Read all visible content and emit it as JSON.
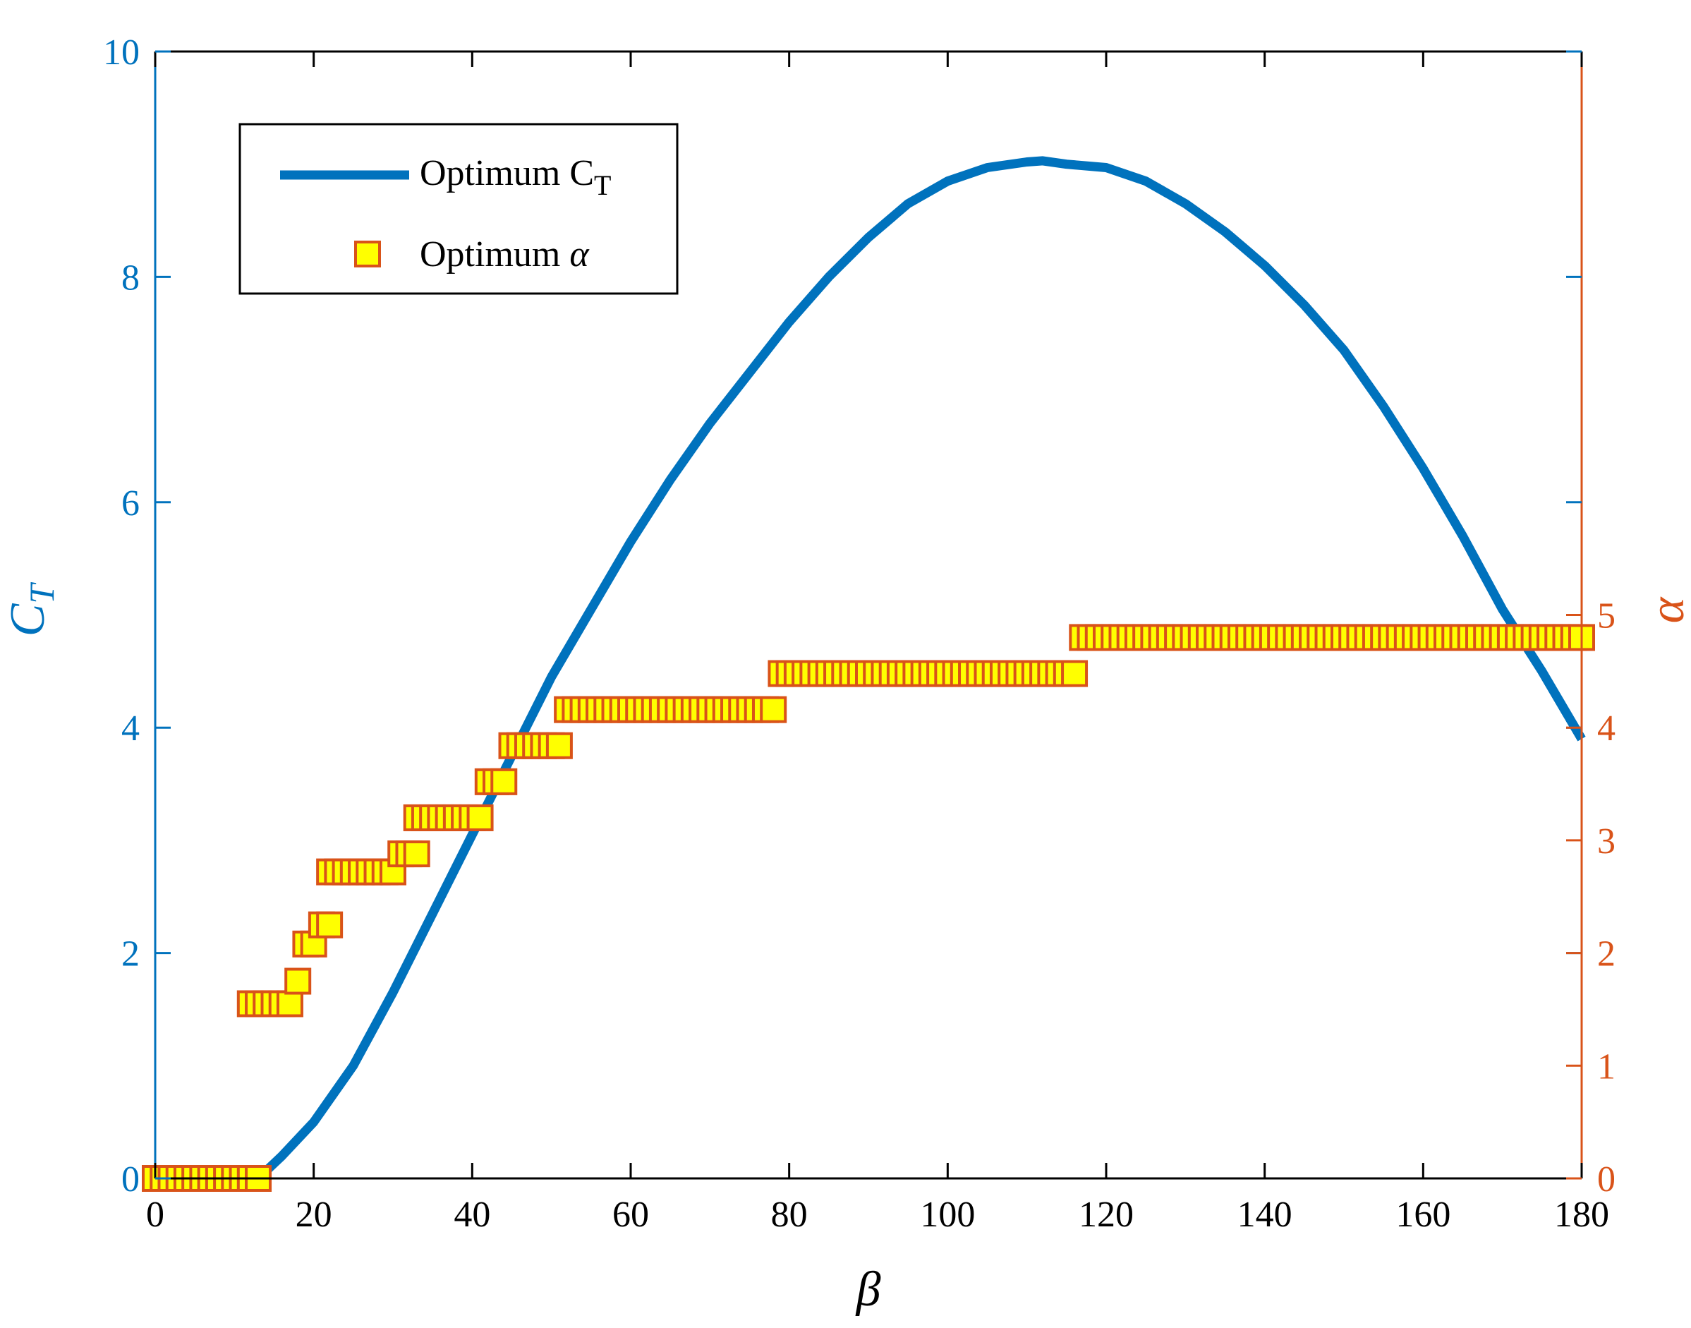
{
  "colors": {
    "left_axis": "#0072BD",
    "right_axis": "#D95319",
    "ct_line": "#0072BD",
    "marker_fill": "#FFFF00",
    "marker_edge": "#D95319",
    "frame": "#000000"
  },
  "chart_data": {
    "type": "line",
    "xlabel": "β",
    "ylabel_left_main": "C",
    "ylabel_left_sub": "T",
    "ylabel_right": "α",
    "xlim": [
      0,
      180
    ],
    "ylim_left": [
      0,
      10
    ],
    "ylim_right": [
      0,
      10
    ],
    "x_ticks": [
      0,
      20,
      40,
      60,
      80,
      100,
      120,
      140,
      160,
      180
    ],
    "x_tick_labels": [
      "0",
      "20",
      "40",
      "60",
      "80",
      "100",
      "120",
      "140",
      "160",
      "180"
    ],
    "y_left_ticks": [
      0,
      2,
      4,
      6,
      8,
      10
    ],
    "y_left_tick_labels": [
      "0",
      "2",
      "4",
      "6",
      "8",
      "10"
    ],
    "y_right_ticks": [
      0,
      1,
      2,
      3,
      4,
      5
    ],
    "y_right_tick_labels": [
      "0",
      "1",
      "2",
      "3",
      "4",
      "5"
    ],
    "legend": {
      "position": "upper-left",
      "line_label_main": "Optimum C",
      "line_label_sub": "T",
      "marker_label_main": "Optimum ",
      "marker_label_symbol": "α"
    },
    "series": [
      {
        "name": "Optimum C_T",
        "axis": "left",
        "style": "line",
        "x": [
          0,
          13,
          16,
          20,
          25,
          30,
          35,
          40,
          45,
          50,
          55,
          60,
          65,
          70,
          75,
          80,
          85,
          90,
          95,
          100,
          105,
          110,
          112,
          115,
          120,
          125,
          130,
          135,
          140,
          145,
          150,
          155,
          160,
          165,
          170,
          175,
          180
        ],
        "y": [
          0,
          0,
          0.2,
          0.5,
          1.0,
          1.65,
          2.35,
          3.05,
          3.75,
          4.45,
          5.05,
          5.65,
          6.2,
          6.7,
          7.15,
          7.6,
          8.0,
          8.35,
          8.65,
          8.85,
          8.97,
          9.02,
          9.03,
          9.0,
          8.97,
          8.85,
          8.65,
          8.4,
          8.1,
          7.75,
          7.35,
          6.85,
          6.3,
          5.7,
          5.05,
          4.5,
          3.9
        ]
      },
      {
        "name": "Optimum α",
        "axis": "right",
        "style": "markers",
        "segments": [
          {
            "x_start": 0,
            "x_end": 13,
            "value": 0.0
          },
          {
            "x_start": 12,
            "x_end": 17,
            "value": 1.55
          },
          {
            "x_start": 18,
            "x_end": 18,
            "value": 1.75
          },
          {
            "x_start": 19,
            "x_end": 20,
            "value": 2.08
          },
          {
            "x_start": 21,
            "x_end": 22,
            "value": 2.25
          },
          {
            "x_start": 22,
            "x_end": 30,
            "value": 2.72
          },
          {
            "x_start": 31,
            "x_end": 33,
            "value": 2.88
          },
          {
            "x_start": 33,
            "x_end": 41,
            "value": 3.2
          },
          {
            "x_start": 42,
            "x_end": 44,
            "value": 3.52
          },
          {
            "x_start": 45,
            "x_end": 51,
            "value": 3.84
          },
          {
            "x_start": 52,
            "x_end": 78,
            "value": 4.16
          },
          {
            "x_start": 79,
            "x_end": 116,
            "value": 4.48
          },
          {
            "x_start": 117,
            "x_end": 180,
            "value": 4.8
          }
        ]
      }
    ]
  }
}
